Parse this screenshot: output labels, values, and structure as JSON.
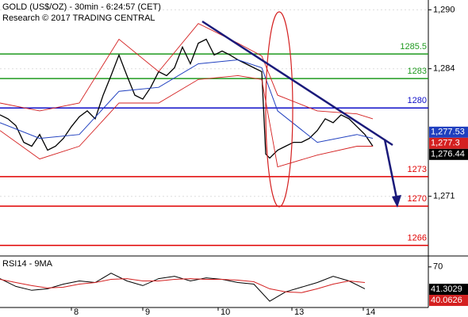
{
  "chart_data": [
    {
      "type": "line",
      "title": "GOLD (US$/OZ) - 30min - 6:24:57 (CET)",
      "subtitle": "Research © 2017 TRADING CENTRAL",
      "xlim": [
        0,
        108
      ],
      "ylim": [
        1265,
        1291
      ],
      "yticks": [
        {
          "value": 1290,
          "label": "1,290"
        },
        {
          "value": 1284,
          "label": "1,284"
        },
        {
          "value": 1271,
          "label": "1,271"
        }
      ],
      "grid": true,
      "series": [
        {
          "color": "#000000",
          "width": 1.3,
          "x": [
            0,
            2,
            4,
            6,
            8,
            10,
            12,
            14,
            16,
            18,
            20,
            22,
            24,
            26,
            28,
            30,
            32,
            34,
            36,
            38,
            40,
            42,
            44,
            46,
            48,
            50,
            52,
            54,
            56,
            58,
            60,
            62,
            64,
            66,
            67,
            68,
            70,
            72,
            74,
            76,
            78,
            80,
            82,
            84,
            86,
            88,
            90,
            92,
            94
          ],
          "values": [
            1279.3,
            1278.9,
            1278.2,
            1276.5,
            1276.1,
            1277.3,
            1275.7,
            1276.1,
            1276.9,
            1278.1,
            1279.1,
            1279.7,
            1278.9,
            1281.3,
            1283.3,
            1285.4,
            1283.3,
            1281.3,
            1280.9,
            1282.1,
            1283.7,
            1283.3,
            1284.1,
            1286.2,
            1284.5,
            1286.6,
            1287.0,
            1285.4,
            1285.8,
            1285.4,
            1284.9,
            1284.5,
            1284.1,
            1283.7,
            1275.3,
            1274.9,
            1275.7,
            1276.1,
            1276.5,
            1276.5,
            1276.9,
            1277.7,
            1278.9,
            1278.5,
            1279.3,
            1278.9,
            1278.1,
            1277.3,
            1276.1
          ]
        },
        {
          "color": "#d42020",
          "width": 0.9,
          "x": [
            0,
            10,
            20,
            30,
            40,
            50,
            60,
            66,
            70,
            80,
            90,
            94
          ],
          "values": [
            1280.5,
            1279.7,
            1280.5,
            1287.0,
            1283.7,
            1288.6,
            1286.6,
            1285.3,
            1281.3,
            1279.7,
            1279.4,
            1278.9
          ]
        },
        {
          "color": "#d42020",
          "width": 0.9,
          "x": [
            0,
            10,
            20,
            30,
            40,
            50,
            60,
            66,
            70,
            80,
            90,
            94
          ],
          "values": [
            1277.7,
            1274.8,
            1276.1,
            1280.5,
            1280.5,
            1282.9,
            1283.3,
            1282.9,
            1274.0,
            1275.2,
            1276.1,
            1276.1
          ]
        },
        {
          "color": "#1f3fbf",
          "width": 1,
          "x": [
            0,
            10,
            20,
            30,
            40,
            50,
            60,
            66,
            70,
            80,
            90,
            94
          ],
          "values": [
            1278.5,
            1276.9,
            1277.3,
            1281.7,
            1282.1,
            1284.5,
            1284.9,
            1284.1,
            1279.7,
            1276.5,
            1277.3,
            1276.9
          ]
        }
      ],
      "levels": [
        {
          "value": 1285.5,
          "color": "#1f9a1f"
        },
        {
          "value": 1283,
          "color": "#1f9a1f"
        },
        {
          "value": 1280,
          "color": "#1010c8"
        },
        {
          "value": 1273,
          "color": "#e00000"
        },
        {
          "value": 1270,
          "color": "#e00000"
        },
        {
          "value": 1266,
          "color": "#e00000"
        }
      ],
      "price_labels": [
        {
          "value": 1277.53,
          "label": "1,277.53",
          "color": "#1f3fbf"
        },
        {
          "value": 1277.3,
          "label": "1,277.3",
          "color": "#d42020"
        },
        {
          "value": 1276.44,
          "label": "1,276.44",
          "color": "#000000"
        }
      ]
    },
    {
      "type": "line",
      "title": "RSI14 - 9MA",
      "xlim": [
        0,
        108
      ],
      "ylim": [
        19,
        83
      ],
      "yticks": [
        70
      ],
      "xticks": [
        {
          "value": 18,
          "label": "8"
        },
        {
          "value": 36,
          "label": "9"
        },
        {
          "value": 55,
          "label": "10"
        },
        {
          "value": 73.6,
          "label": "13"
        },
        {
          "value": 91.6,
          "label": "14"
        }
      ],
      "series": [
        {
          "color": "#000000",
          "width": 1,
          "x": [
            0,
            4,
            8,
            12,
            16,
            20,
            24,
            28,
            32,
            36,
            40,
            44,
            48,
            52,
            56,
            60,
            64,
            68,
            72,
            76,
            80,
            84,
            88,
            92
          ],
          "values": [
            55,
            45,
            40,
            42,
            48,
            52,
            50,
            62,
            52,
            46,
            55,
            58,
            52,
            56,
            54,
            50,
            48,
            26,
            38,
            44,
            50,
            58,
            52,
            42
          ]
        },
        {
          "color": "#d42020",
          "width": 1,
          "x": [
            0,
            4,
            8,
            12,
            16,
            20,
            24,
            28,
            32,
            36,
            40,
            44,
            48,
            52,
            56,
            60,
            64,
            68,
            72,
            76,
            80,
            84,
            88,
            92
          ],
          "values": [
            54,
            50,
            46,
            43,
            44,
            48,
            50,
            54,
            55,
            52,
            52,
            54,
            55,
            54,
            54,
            53,
            51,
            42,
            38,
            37,
            42,
            48,
            52,
            50
          ]
        }
      ],
      "price_labels": [
        {
          "value": 41.3029,
          "label": "41.3029",
          "color": "#000000"
        },
        {
          "value": 40.0626,
          "label": "40.0626",
          "color": "#d42020"
        }
      ]
    }
  ]
}
